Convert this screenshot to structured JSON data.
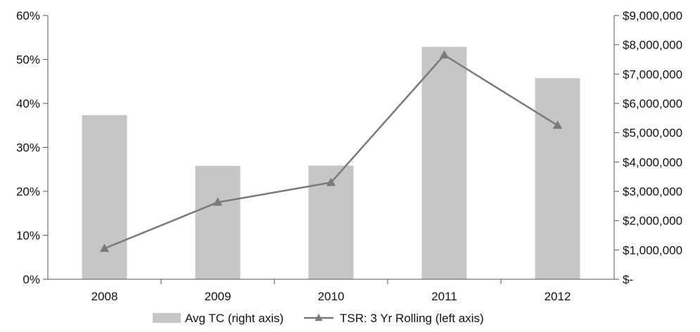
{
  "chart_data": {
    "type": "bar",
    "categories": [
      "2008",
      "2009",
      "2010",
      "2011",
      "2012"
    ],
    "series": [
      {
        "name": "Avg TC (right axis)",
        "type": "bar",
        "axis": "right",
        "values": [
          5600000,
          3870000,
          3880000,
          7930000,
          6860000
        ],
        "color": "#c6c6c6"
      },
      {
        "name": "TSR: 3 Yr Rolling (left axis)",
        "type": "line",
        "marker": "triangle",
        "axis": "left",
        "values": [
          7,
          17.5,
          22,
          51,
          35
        ],
        "color": "#7a7a7a"
      }
    ],
    "left_axis": {
      "ylim": [
        0,
        60
      ],
      "ticks": [
        0,
        10,
        20,
        30,
        40,
        50,
        60
      ],
      "tick_labels": [
        "0%",
        "10%",
        "20%",
        "30%",
        "40%",
        "50%",
        "60%"
      ]
    },
    "right_axis": {
      "ylim": [
        0,
        9000000
      ],
      "ticks": [
        0,
        1000000,
        2000000,
        3000000,
        4000000,
        5000000,
        6000000,
        7000000,
        8000000,
        9000000
      ],
      "tick_labels": [
        "$-",
        "$1,000,000",
        "$2,000,000",
        "$3,000,000",
        "$4,000,000",
        "$5,000,000",
        "$6,000,000",
        "$7,000,000",
        "$8,000,000",
        "$9,000,000"
      ]
    },
    "legend": {
      "placement": "bottom",
      "entries": [
        "Avg TC (right axis)",
        "TSR: 3 Yr Rolling (left axis)"
      ]
    },
    "grid": false,
    "title": "",
    "xlabel": ""
  }
}
